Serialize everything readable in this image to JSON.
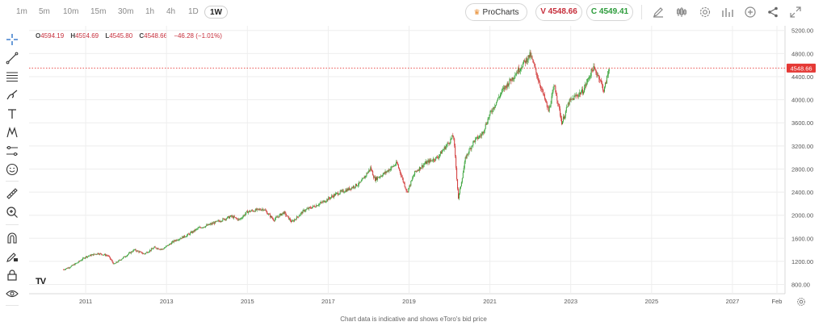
{
  "toolbar": {
    "timeframes": [
      "1m",
      "5m",
      "10m",
      "15m",
      "30m",
      "1h",
      "4h",
      "1D",
      "1W"
    ],
    "active_timeframe": "1W",
    "prochart_label": "ProCharts",
    "sell_label": "V 4548.66",
    "buy_label": "C 4549.41",
    "icons": [
      "pencil-icon",
      "candles-icon",
      "settings-icon",
      "indicators-icon",
      "add-icon",
      "share-icon",
      "fullscreen-icon"
    ]
  },
  "left_tools": [
    "crosshair-icon",
    "trendline-icon",
    "fib-icon",
    "brush-icon",
    "text-icon",
    "pattern-icon",
    "forecast-icon",
    "emoji-icon",
    "ruler-icon",
    "zoom-icon",
    "magnet-icon",
    "lock-drawing-icon",
    "lock-icon",
    "eye-icon"
  ],
  "ohlc": {
    "open_key": "O",
    "open": "4594.19",
    "high_key": "H",
    "high": "4594.69",
    "low_key": "L",
    "low": "4545.80",
    "close_key": "C",
    "close": "4548.66",
    "change": "−46.28 (−1.01%)"
  },
  "footer_note": "Chart data is indicative and shows eToro's bid price",
  "logo_text": "TV",
  "colors": {
    "up": "#3aa33a",
    "down": "#d23b3b",
    "last_price": "#e53935",
    "grid": "#eeeeee"
  },
  "chart_data": {
    "type": "candlestick",
    "x_ticks": [
      "2011",
      "2013",
      "2015",
      "2017",
      "2019",
      "2021",
      "2023",
      "2025",
      "2027",
      "Feb"
    ],
    "y_ticks": [
      "800.00",
      "1200.00",
      "1600.00",
      "2000.00",
      "2400.00",
      "2800.00",
      "3200.00",
      "3600.00",
      "4000.00",
      "4400.00",
      "4800.00",
      "5200.00"
    ],
    "ylim": [
      640,
      5280
    ],
    "xlim": [
      2009.6,
      2028.3
    ],
    "last_price": 4548.66,
    "last_price_label": "4548.66",
    "series": [
      {
        "x": 2010.45,
        "y": 1060
      },
      {
        "x": 2010.6,
        "y": 1100
      },
      {
        "x": 2010.8,
        "y": 1180
      },
      {
        "x": 2011.0,
        "y": 1280
      },
      {
        "x": 2011.3,
        "y": 1340
      },
      {
        "x": 2011.55,
        "y": 1300
      },
      {
        "x": 2011.7,
        "y": 1150
      },
      {
        "x": 2011.9,
        "y": 1250
      },
      {
        "x": 2012.2,
        "y": 1400
      },
      {
        "x": 2012.45,
        "y": 1330
      },
      {
        "x": 2012.7,
        "y": 1440
      },
      {
        "x": 2012.9,
        "y": 1410
      },
      {
        "x": 2013.2,
        "y": 1560
      },
      {
        "x": 2013.5,
        "y": 1650
      },
      {
        "x": 2013.8,
        "y": 1780
      },
      {
        "x": 2014.0,
        "y": 1820
      },
      {
        "x": 2014.3,
        "y": 1900
      },
      {
        "x": 2014.6,
        "y": 1980
      },
      {
        "x": 2014.8,
        "y": 1920
      },
      {
        "x": 2015.0,
        "y": 2060
      },
      {
        "x": 2015.4,
        "y": 2110
      },
      {
        "x": 2015.65,
        "y": 1920
      },
      {
        "x": 2015.9,
        "y": 2050
      },
      {
        "x": 2016.1,
        "y": 1880
      },
      {
        "x": 2016.4,
        "y": 2080
      },
      {
        "x": 2016.7,
        "y": 2170
      },
      {
        "x": 2016.9,
        "y": 2240
      },
      {
        "x": 2017.2,
        "y": 2370
      },
      {
        "x": 2017.5,
        "y": 2450
      },
      {
        "x": 2017.8,
        "y": 2560
      },
      {
        "x": 2018.05,
        "y": 2820
      },
      {
        "x": 2018.15,
        "y": 2620
      },
      {
        "x": 2018.4,
        "y": 2730
      },
      {
        "x": 2018.7,
        "y": 2900
      },
      {
        "x": 2018.95,
        "y": 2400
      },
      {
        "x": 2019.15,
        "y": 2750
      },
      {
        "x": 2019.4,
        "y": 2900
      },
      {
        "x": 2019.7,
        "y": 3000
      },
      {
        "x": 2019.95,
        "y": 3230
      },
      {
        "x": 2020.1,
        "y": 3380
      },
      {
        "x": 2020.22,
        "y": 2290
      },
      {
        "x": 2020.4,
        "y": 3000
      },
      {
        "x": 2020.6,
        "y": 3280
      },
      {
        "x": 2020.8,
        "y": 3400
      },
      {
        "x": 2021.0,
        "y": 3750
      },
      {
        "x": 2021.3,
        "y": 4150
      },
      {
        "x": 2021.6,
        "y": 4420
      },
      {
        "x": 2021.85,
        "y": 4650
      },
      {
        "x": 2022.0,
        "y": 4780
      },
      {
        "x": 2022.2,
        "y": 4350
      },
      {
        "x": 2022.45,
        "y": 3800
      },
      {
        "x": 2022.6,
        "y": 4250
      },
      {
        "x": 2022.78,
        "y": 3600
      },
      {
        "x": 2022.95,
        "y": 3950
      },
      {
        "x": 2023.1,
        "y": 4050
      },
      {
        "x": 2023.3,
        "y": 4150
      },
      {
        "x": 2023.55,
        "y": 4550
      },
      {
        "x": 2023.7,
        "y": 4400
      },
      {
        "x": 2023.82,
        "y": 4150
      },
      {
        "x": 2023.95,
        "y": 4560
      }
    ]
  }
}
